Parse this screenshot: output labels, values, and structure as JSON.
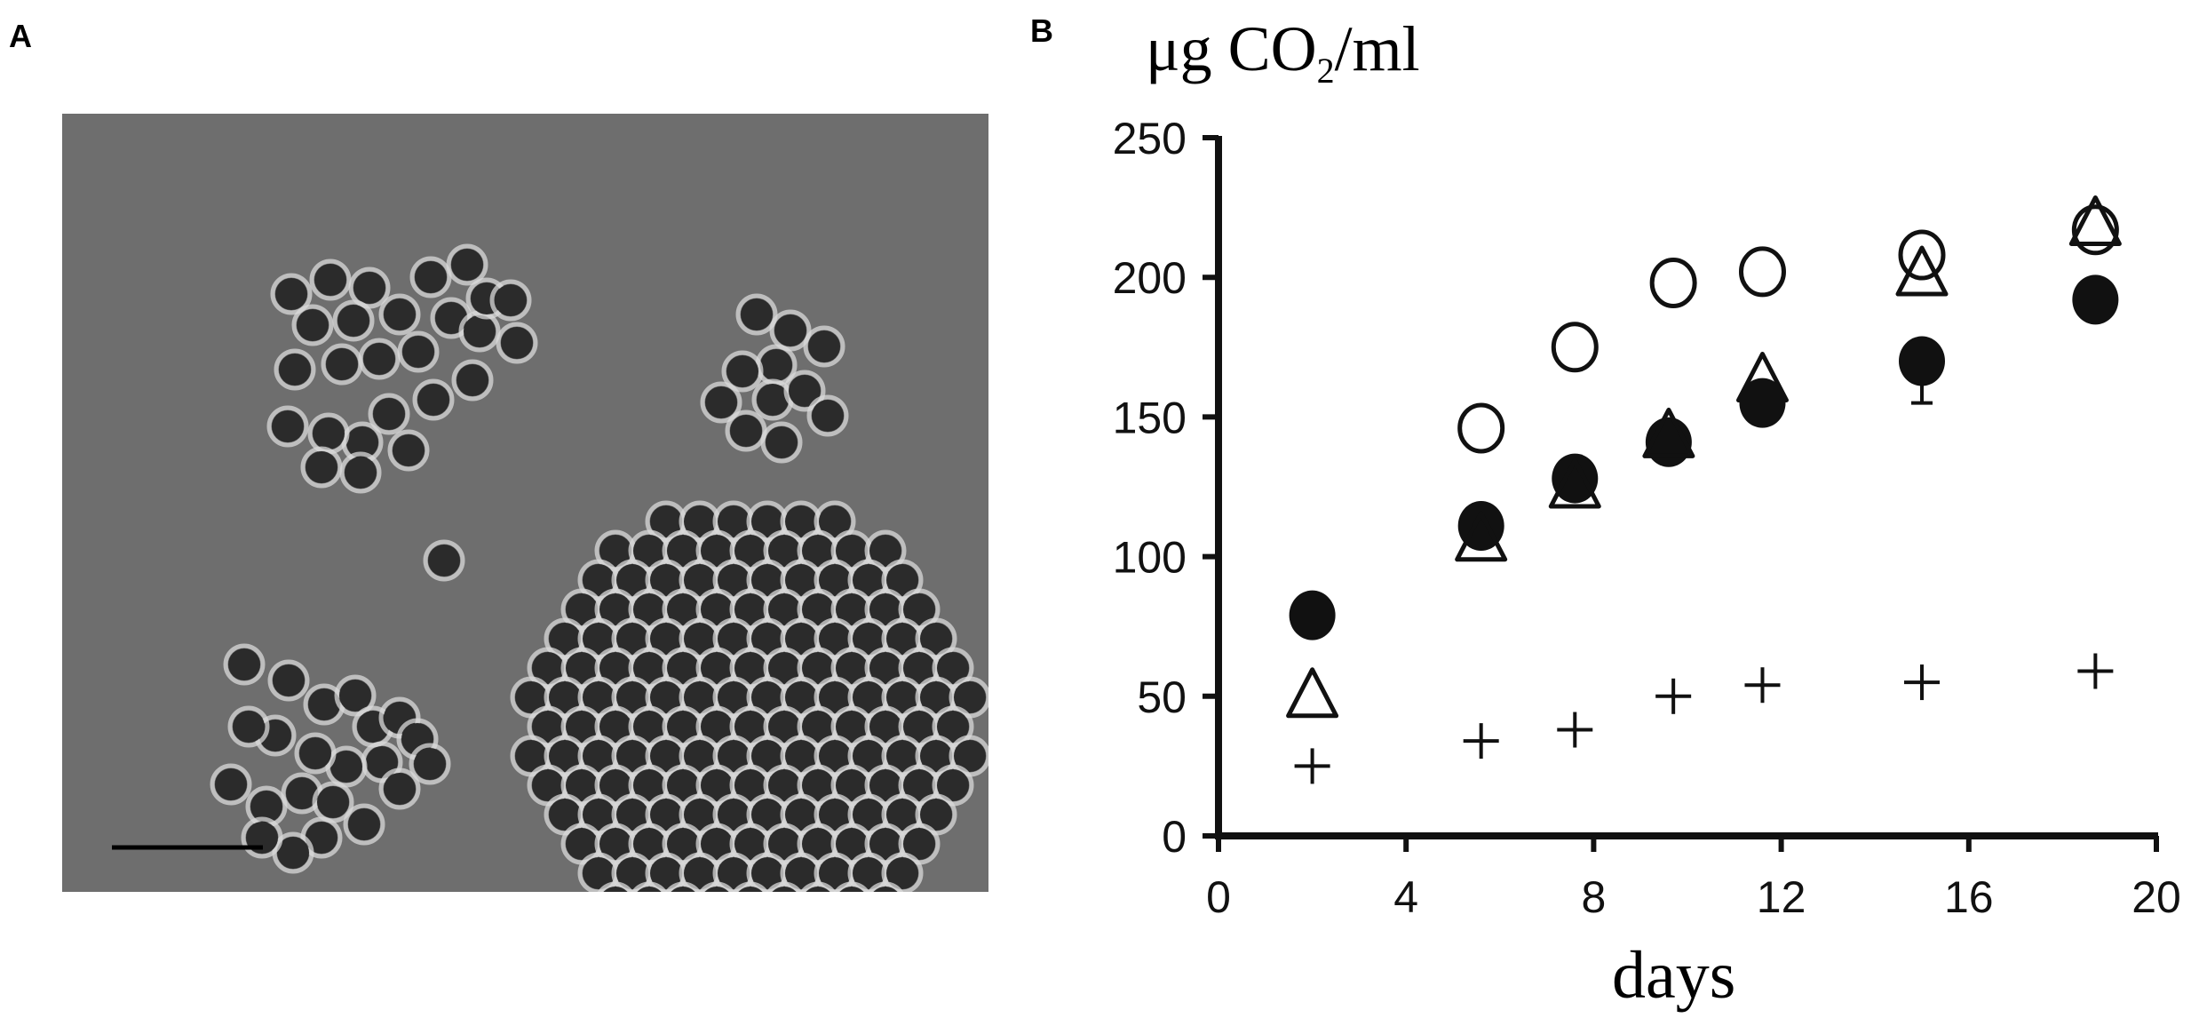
{
  "panels": {
    "a_label": "A",
    "b_label": "B"
  },
  "micrograph": {
    "background_color": "#6e6e6e",
    "cell_color": "#2b2b2b",
    "halo_color": "#d9d9d9",
    "has_scale_bar": true
  },
  "chart_data": {
    "type": "scatter",
    "ylabel_main": "μg CO",
    "ylabel_sub": "2",
    "ylabel_tail": "/ml",
    "xlabel": "days",
    "xlim": [
      0,
      20
    ],
    "ylim": [
      0,
      250
    ],
    "x_ticks": [
      0,
      4,
      8,
      12,
      16,
      20
    ],
    "y_ticks": [
      0,
      50,
      100,
      150,
      200,
      250
    ],
    "grid": false,
    "series": [
      {
        "marker": "open-circle",
        "points": [
          [
            5.6,
            146
          ],
          [
            7.6,
            175
          ],
          [
            9.7,
            198
          ],
          [
            11.6,
            202
          ],
          [
            15.0,
            208
          ],
          [
            18.7,
            217
          ]
        ]
      },
      {
        "marker": "filled-circle",
        "points": [
          [
            2.0,
            79
          ],
          [
            5.6,
            111
          ],
          [
            7.6,
            128
          ],
          [
            9.6,
            141
          ],
          [
            11.6,
            155
          ],
          [
            15.0,
            170
          ],
          [
            18.7,
            192
          ]
        ],
        "error_bars": [
          [
            15.0,
            155,
            170
          ]
        ]
      },
      {
        "marker": "open-triangle",
        "points": [
          [
            2.0,
            50
          ],
          [
            5.6,
            106
          ],
          [
            7.6,
            125
          ],
          [
            9.6,
            143
          ],
          [
            11.6,
            163
          ],
          [
            15.0,
            201
          ],
          [
            18.7,
            219
          ]
        ]
      },
      {
        "marker": "plus",
        "points": [
          [
            2.0,
            25
          ],
          [
            5.6,
            34
          ],
          [
            7.6,
            38
          ],
          [
            9.7,
            50
          ],
          [
            11.6,
            54
          ],
          [
            15.0,
            55
          ],
          [
            18.7,
            59
          ]
        ]
      }
    ]
  }
}
